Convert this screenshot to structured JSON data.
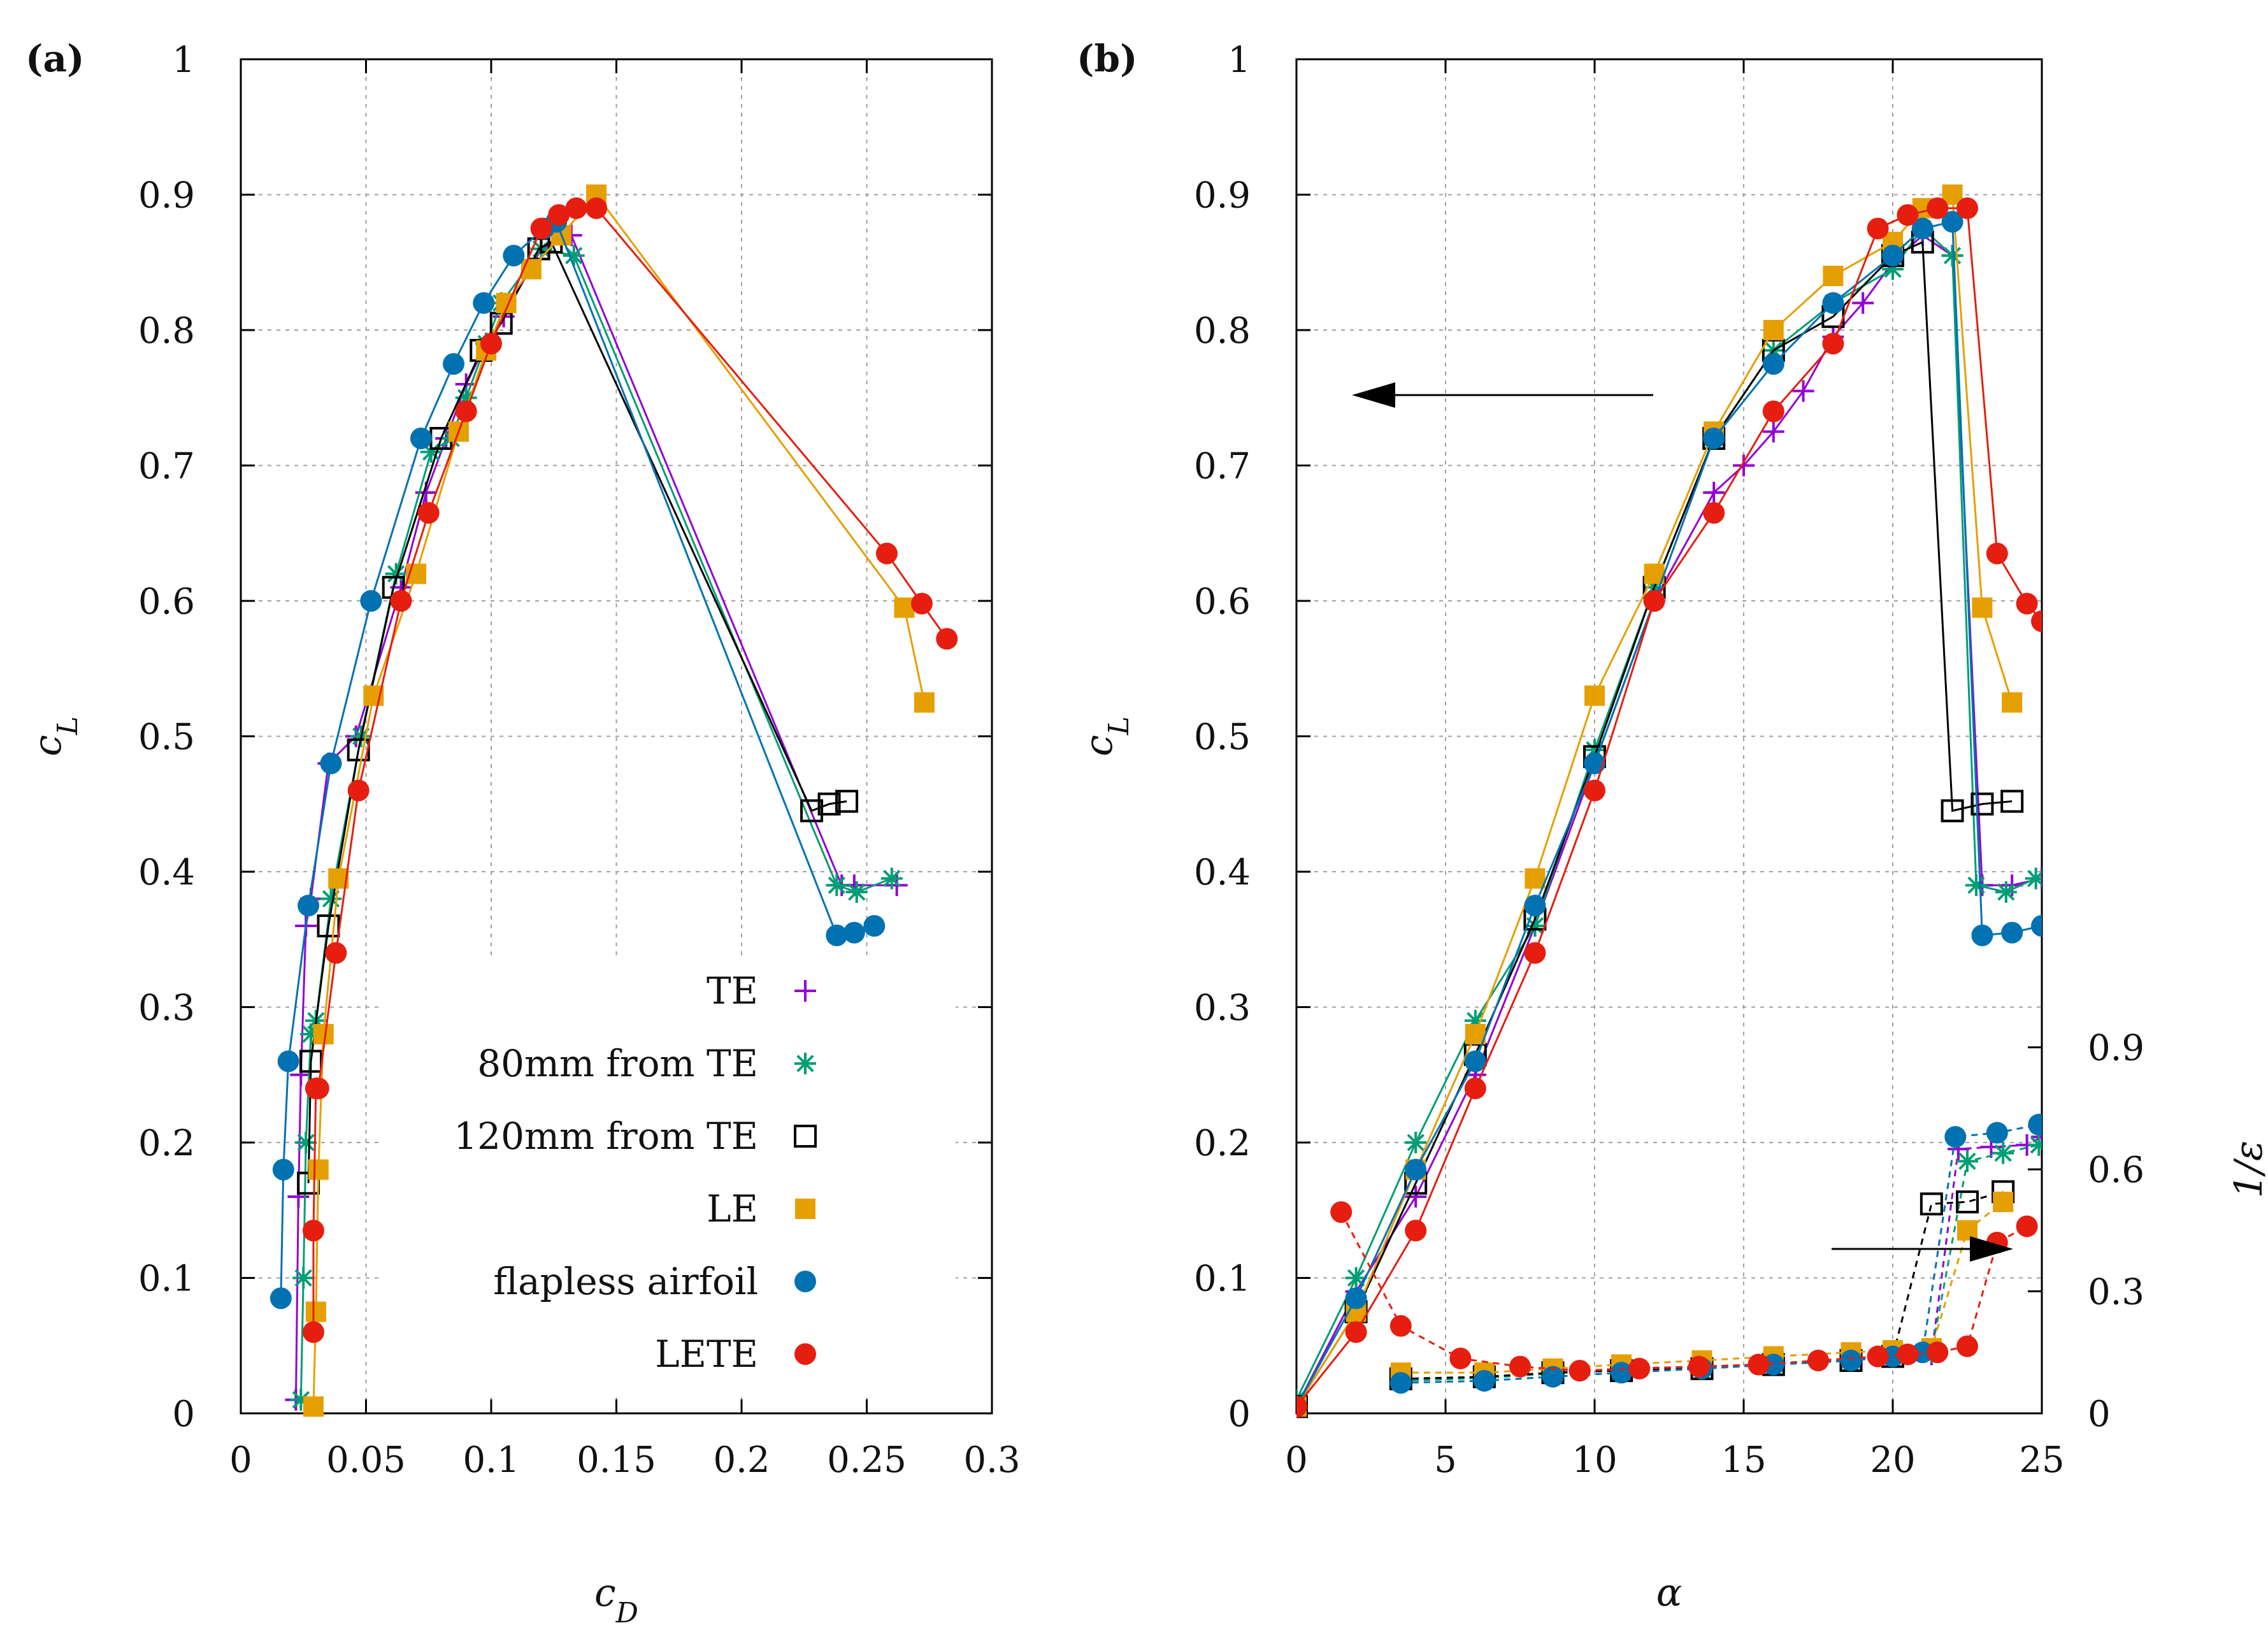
{
  "chart_data": [
    {
      "panel": "(a)",
      "type": "line",
      "xlabel": "c_D",
      "ylabel": "c_L",
      "xlim": [
        0,
        0.3
      ],
      "ylim": [
        0,
        1
      ],
      "xticks": [
        "0",
        "0.05",
        "0.1",
        "0.15",
        "0.2",
        "0.25",
        "0.3"
      ],
      "yticks": [
        "0",
        "0.1",
        "0.2",
        "0.3",
        "0.4",
        "0.5",
        "0.6",
        "0.7",
        "0.8",
        "0.9",
        "1"
      ],
      "grid": true,
      "legend": "bottom-right",
      "series": [
        {
          "name": "TE",
          "color": "#9400d3",
          "marker": "plus",
          "x": [
            0.022,
            0.023,
            0.024,
            0.026,
            0.028,
            0.035,
            0.046,
            0.064,
            0.074,
            0.082,
            0.09,
            0.098,
            0.105,
            0.12,
            0.132,
            0.24,
            0.245,
            0.262
          ],
          "y": [
            0.01,
            0.16,
            0.25,
            0.36,
            0.38,
            0.48,
            0.5,
            0.61,
            0.68,
            0.72,
            0.76,
            0.79,
            0.81,
            0.86,
            0.87,
            0.39,
            0.39,
            0.39
          ]
        },
        {
          "name": "80mm from TE",
          "color": "#009e73",
          "marker": "star",
          "x": [
            0.024,
            0.025,
            0.026,
            0.028,
            0.03,
            0.036,
            0.048,
            0.062,
            0.076,
            0.084,
            0.09,
            0.098,
            0.104,
            0.12,
            0.133,
            0.238,
            0.246,
            0.26
          ],
          "y": [
            0.01,
            0.1,
            0.2,
            0.28,
            0.29,
            0.38,
            0.5,
            0.62,
            0.71,
            0.72,
            0.75,
            0.79,
            0.82,
            0.86,
            0.855,
            0.39,
            0.385,
            0.395
          ]
        },
        {
          "name": "120mm from TE",
          "color": "#000000",
          "marker": "open-square",
          "x": [
            0.027,
            0.028,
            0.035,
            0.047,
            0.061,
            0.08,
            0.096,
            0.104,
            0.119,
            0.124,
            0.228,
            0.235,
            0.242
          ],
          "y": [
            0.17,
            0.26,
            0.36,
            0.49,
            0.61,
            0.72,
            0.785,
            0.805,
            0.86,
            0.865,
            0.445,
            0.45,
            0.452
          ]
        },
        {
          "name": "LE",
          "color": "#e69f00",
          "marker": "filled-square",
          "x": [
            0.029,
            0.03,
            0.031,
            0.033,
            0.039,
            0.053,
            0.07,
            0.087,
            0.098,
            0.106,
            0.116,
            0.128,
            0.142,
            0.265,
            0.273
          ],
          "y": [
            0.005,
            0.075,
            0.18,
            0.28,
            0.395,
            0.53,
            0.62,
            0.725,
            0.785,
            0.82,
            0.845,
            0.87,
            0.9,
            0.595,
            0.525
          ]
        },
        {
          "name": "flapless airfoil",
          "color": "#0072b2",
          "marker": "filled-circle",
          "x": [
            0.016,
            0.017,
            0.019,
            0.027,
            0.036,
            0.052,
            0.072,
            0.085,
            0.097,
            0.109,
            0.121,
            0.126,
            0.238,
            0.245,
            0.253
          ],
          "y": [
            0.085,
            0.18,
            0.26,
            0.375,
            0.48,
            0.6,
            0.72,
            0.775,
            0.82,
            0.855,
            0.875,
            0.88,
            0.353,
            0.355,
            0.36
          ]
        },
        {
          "name": "LETE",
          "color": "#e51e10",
          "marker": "filled-circle",
          "x": [
            0.029,
            0.029,
            0.03,
            0.031,
            0.038,
            0.047,
            0.064,
            0.075,
            0.09,
            0.1,
            0.12,
            0.127,
            0.134,
            0.142,
            0.258,
            0.272,
            0.282
          ],
          "y": [
            0.06,
            0.135,
            0.24,
            0.24,
            0.34,
            0.46,
            0.6,
            0.665,
            0.74,
            0.79,
            0.875,
            0.885,
            0.89,
            0.89,
            0.635,
            0.598,
            0.572
          ]
        }
      ]
    },
    {
      "panel": "(b)",
      "type": "line",
      "xlabel": "α",
      "ylabel": "c_L",
      "y2label": "1/ε",
      "xlim": [
        0,
        25
      ],
      "ylim": [
        0,
        1
      ],
      "y2lim": [
        0,
        3.33
      ],
      "xticks": [
        "0",
        "5",
        "10",
        "15",
        "20",
        "25"
      ],
      "yticks": [
        "0",
        "0.1",
        "0.2",
        "0.3",
        "0.4",
        "0.5",
        "0.6",
        "0.7",
        "0.8",
        "0.9",
        "1"
      ],
      "y2ticks": [
        "0",
        "0.3",
        "0.6",
        "0.9"
      ],
      "grid": true,
      "annotations": [
        {
          "type": "arrow",
          "direction": "left",
          "meaning": "c_L axis"
        },
        {
          "type": "arrow",
          "direction": "right",
          "meaning": "1/ε axis"
        }
      ],
      "series": [
        {
          "name": "TE",
          "axis": "left",
          "color": "#9400d3",
          "marker": "plus",
          "x": [
            0,
            2,
            4,
            6,
            8,
            10,
            12,
            14,
            15,
            16,
            17,
            18,
            19,
            20,
            21,
            22,
            23,
            24,
            25
          ],
          "y": [
            0.005,
            0.09,
            0.16,
            0.25,
            0.36,
            0.48,
            0.6,
            0.68,
            0.7,
            0.725,
            0.755,
            0.795,
            0.82,
            0.85,
            0.87,
            0.855,
            0.39,
            0.39,
            0.395
          ]
        },
        {
          "name": "80mm from TE",
          "axis": "left",
          "color": "#009e73",
          "marker": "star",
          "x": [
            0,
            2,
            4,
            6,
            8,
            10,
            12,
            14,
            16,
            18,
            20,
            21,
            22,
            22.8,
            23.8,
            24.8
          ],
          "y": [
            0.01,
            0.1,
            0.2,
            0.29,
            0.36,
            0.49,
            0.61,
            0.72,
            0.785,
            0.82,
            0.845,
            0.875,
            0.855,
            0.39,
            0.385,
            0.395
          ]
        },
        {
          "name": "120mm from TE",
          "axis": "left",
          "color": "#000000",
          "marker": "open-square",
          "x": [
            0,
            2,
            4,
            6,
            8,
            10,
            12,
            14,
            16,
            18,
            20,
            21,
            22,
            23,
            24
          ],
          "y": [
            0.005,
            0.075,
            0.17,
            0.265,
            0.365,
            0.485,
            0.61,
            0.72,
            0.785,
            0.81,
            0.855,
            0.865,
            0.445,
            0.45,
            0.452
          ]
        },
        {
          "name": "LE",
          "axis": "left",
          "color": "#e69f00",
          "marker": "filled-square",
          "x": [
            0,
            2,
            4,
            6,
            8,
            10,
            12,
            14,
            16,
            18,
            20,
            21,
            22,
            23,
            24
          ],
          "y": [
            0.005,
            0.075,
            0.18,
            0.28,
            0.395,
            0.53,
            0.62,
            0.725,
            0.8,
            0.84,
            0.865,
            0.89,
            0.9,
            0.595,
            0.525
          ]
        },
        {
          "name": "flapless airfoil",
          "axis": "left",
          "color": "#0072b2",
          "marker": "filled-circle",
          "x": [
            0,
            2,
            4,
            6,
            8,
            10,
            12,
            14,
            16,
            18,
            20,
            21,
            22,
            23,
            24,
            25
          ],
          "y": [
            0.005,
            0.085,
            0.18,
            0.26,
            0.375,
            0.48,
            0.6,
            0.72,
            0.775,
            0.82,
            0.855,
            0.875,
            0.88,
            0.353,
            0.355,
            0.36
          ]
        },
        {
          "name": "LETE",
          "axis": "left",
          "color": "#e51e10",
          "marker": "filled-circle",
          "x": [
            0,
            2,
            4,
            6,
            8,
            10,
            12,
            14,
            16,
            18,
            19.5,
            20.5,
            21.5,
            22.5,
            23.5,
            24.5,
            25
          ],
          "y": [
            0.005,
            0.06,
            0.135,
            0.24,
            0.34,
            0.46,
            0.6,
            0.665,
            0.74,
            0.79,
            0.875,
            0.885,
            0.89,
            0.89,
            0.635,
            0.598,
            0.585
          ]
        },
        {
          "name": "TE 1/ε",
          "axis": "right",
          "color": "#9400d3",
          "marker": "plus",
          "x": [
            3.5,
            6.3,
            8.6,
            10.9,
            13.6,
            16,
            18.6,
            20,
            21.3,
            22.2,
            23.3,
            24.5,
            25
          ],
          "y": [
            0.082,
            0.088,
            0.1,
            0.11,
            0.115,
            0.12,
            0.13,
            0.14,
            0.145,
            0.65,
            0.655,
            0.66,
            0.68
          ]
        },
        {
          "name": "80mm from TE 1/ε",
          "axis": "right",
          "color": "#009e73",
          "marker": "star",
          "x": [
            3.5,
            6.3,
            8.6,
            10.9,
            13.6,
            16,
            18.6,
            20,
            21.3,
            22.5,
            23.7,
            24.9
          ],
          "y": [
            0.08,
            0.087,
            0.098,
            0.108,
            0.114,
            0.12,
            0.13,
            0.14,
            0.15,
            0.62,
            0.64,
            0.66
          ]
        },
        {
          "name": "120mm from TE 1/ε",
          "axis": "right",
          "color": "#000000",
          "marker": "open-square",
          "x": [
            3.5,
            6.3,
            8.6,
            10.9,
            13.6,
            16,
            18.6,
            20,
            21.3,
            22.5,
            23.7
          ],
          "y": [
            0.085,
            0.09,
            0.1,
            0.105,
            0.11,
            0.12,
            0.13,
            0.14,
            0.515,
            0.52,
            0.545
          ]
        },
        {
          "name": "LE 1/ε",
          "axis": "right",
          "color": "#e69f00",
          "marker": "filled-square",
          "x": [
            3.5,
            6.3,
            8.6,
            10.9,
            13.6,
            16,
            18.6,
            20,
            21.3,
            22.5,
            23.7
          ],
          "y": [
            0.1,
            0.1,
            0.11,
            0.12,
            0.13,
            0.14,
            0.15,
            0.155,
            0.16,
            0.45,
            0.52
          ]
        },
        {
          "name": "flapless airfoil 1/ε",
          "axis": "right",
          "color": "#0072b2",
          "marker": "filled-circle",
          "x": [
            3.5,
            6.3,
            8.6,
            10.9,
            13.6,
            16,
            18.6,
            20,
            21,
            22.1,
            23.5,
            24.9
          ],
          "y": [
            0.075,
            0.08,
            0.09,
            0.1,
            0.11,
            0.12,
            0.13,
            0.14,
            0.15,
            0.68,
            0.69,
            0.71
          ]
        },
        {
          "name": "LETE 1/ε",
          "axis": "right",
          "color": "#e51e10",
          "marker": "filled-circle",
          "x": [
            1.5,
            3.5,
            5.5,
            7.5,
            9.5,
            11.5,
            13.5,
            15.5,
            17.5,
            19.5,
            20.5,
            21.5,
            22.5,
            23.5,
            24.5
          ],
          "y": [
            0.495,
            0.215,
            0.135,
            0.115,
            0.105,
            0.11,
            0.115,
            0.12,
            0.13,
            0.14,
            0.145,
            0.15,
            0.165,
            0.42,
            0.46
          ]
        }
      ]
    }
  ],
  "legend_entries": [
    "TE",
    "80mm from TE",
    "120mm from TE",
    "LE",
    "flapless airfoil",
    "LETE"
  ]
}
